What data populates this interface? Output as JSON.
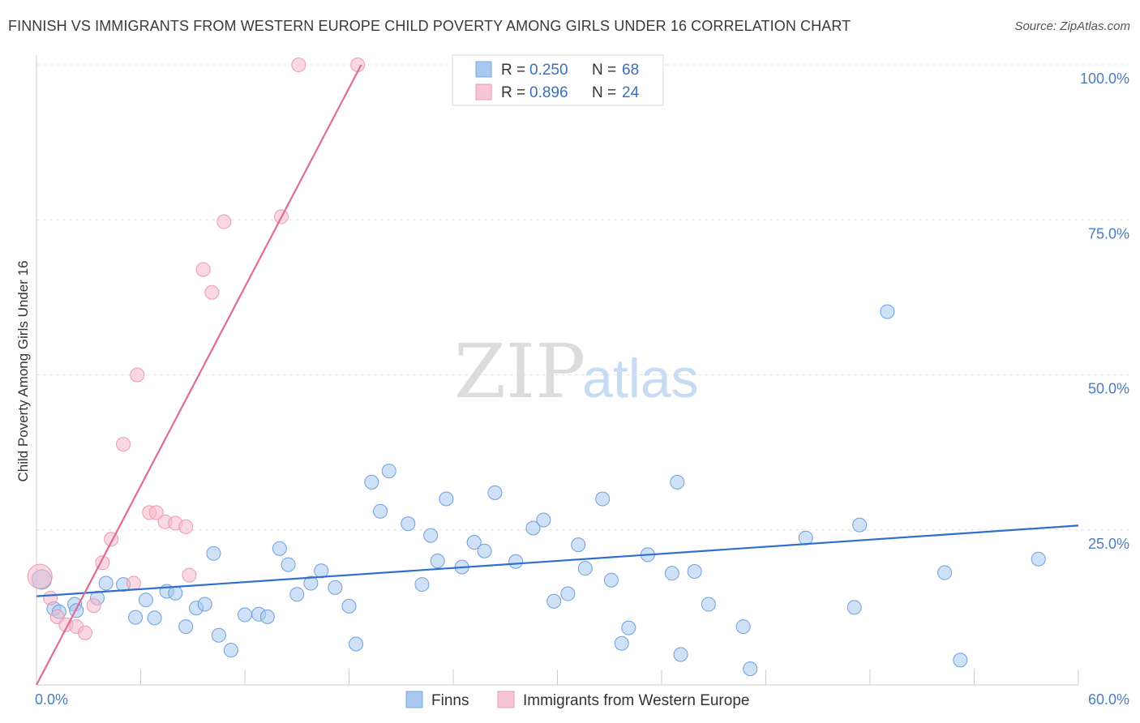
{
  "header": {
    "title": "FINNISH VS IMMIGRANTS FROM WESTERN EUROPE CHILD POVERTY AMONG GIRLS UNDER 16 CORRELATION CHART",
    "source": "Source: ZipAtlas.com"
  },
  "watermark": {
    "zip": "ZIP",
    "atlas": "atlas"
  },
  "legend": {
    "r_label": "R =",
    "n_label": "N =",
    "finns": {
      "r": "0.250",
      "n": "68"
    },
    "immigrants": {
      "r": "0.896",
      "n": "24"
    }
  },
  "chart_data": {
    "type": "scatter",
    "title": "FINNISH VS IMMIGRANTS FROM WESTERN EUROPE CHILD POVERTY AMONG GIRLS UNDER 16 CORRELATION CHART",
    "xlabel": "",
    "ylabel": "Child Poverty Among Girls Under 16",
    "xlim": [
      0,
      60
    ],
    "ylim": [
      0,
      100
    ],
    "x_tick_labels": [
      "0.0%",
      "60.0%"
    ],
    "y_tick_labels": [
      "25.0%",
      "50.0%",
      "75.0%",
      "100.0%"
    ],
    "y_ticks": [
      25,
      50,
      75,
      100
    ],
    "grid": true,
    "legend_position": "top-center",
    "colors": {
      "finns": "#a8c8f0",
      "finns_line": "#2f6fce",
      "immigrants": "#f6b8ca",
      "immigrants_line": "#e06b95"
    },
    "series": [
      {
        "name": "Finns",
        "trend": [
          [
            0,
            14.3
          ],
          [
            60,
            25.7
          ]
        ],
        "points": [
          [
            0.3,
            17.0
          ],
          [
            1.0,
            12.3
          ],
          [
            1.3,
            11.8
          ],
          [
            2.2,
            13.0
          ],
          [
            2.3,
            12.0
          ],
          [
            4.0,
            16.4
          ],
          [
            3.5,
            14.0
          ],
          [
            5.0,
            16.2
          ],
          [
            5.7,
            10.9
          ],
          [
            6.3,
            13.7
          ],
          [
            6.8,
            10.8
          ],
          [
            7.5,
            15.1
          ],
          [
            8.0,
            14.8
          ],
          [
            8.6,
            9.4
          ],
          [
            9.2,
            12.4
          ],
          [
            9.7,
            13.0
          ],
          [
            10.2,
            21.2
          ],
          [
            10.5,
            8.0
          ],
          [
            11.2,
            5.6
          ],
          [
            12.0,
            11.3
          ],
          [
            12.8,
            11.4
          ],
          [
            13.3,
            11.0
          ],
          [
            14.0,
            22.0
          ],
          [
            14.5,
            19.4
          ],
          [
            15.0,
            14.6
          ],
          [
            15.8,
            16.4
          ],
          [
            16.4,
            18.4
          ],
          [
            17.2,
            15.7
          ],
          [
            18.0,
            12.7
          ],
          [
            18.4,
            6.6
          ],
          [
            19.3,
            32.7
          ],
          [
            19.8,
            28.0
          ],
          [
            20.3,
            34.5
          ],
          [
            21.4,
            26.0
          ],
          [
            22.2,
            16.2
          ],
          [
            22.7,
            24.1
          ],
          [
            23.1,
            20.0
          ],
          [
            23.6,
            30.0
          ],
          [
            24.5,
            19.0
          ],
          [
            25.2,
            23.0
          ],
          [
            25.8,
            21.6
          ],
          [
            26.4,
            31.0
          ],
          [
            27.6,
            19.9
          ],
          [
            28.6,
            25.3
          ],
          [
            29.2,
            26.6
          ],
          [
            29.8,
            13.5
          ],
          [
            30.6,
            14.7
          ],
          [
            31.2,
            22.6
          ],
          [
            31.6,
            18.8
          ],
          [
            32.6,
            30.0
          ],
          [
            33.1,
            16.9
          ],
          [
            33.7,
            6.7
          ],
          [
            34.1,
            9.2
          ],
          [
            35.2,
            21.0
          ],
          [
            36.6,
            18.0
          ],
          [
            36.9,
            32.7
          ],
          [
            37.1,
            4.9
          ],
          [
            37.9,
            18.3
          ],
          [
            38.7,
            13.0
          ],
          [
            40.7,
            9.4
          ],
          [
            41.1,
            2.6
          ],
          [
            44.3,
            23.7
          ],
          [
            47.1,
            12.5
          ],
          [
            47.4,
            25.8
          ],
          [
            49.0,
            60.2
          ],
          [
            52.3,
            18.1
          ],
          [
            53.2,
            4.0
          ],
          [
            57.7,
            20.3
          ]
        ]
      },
      {
        "name": "Immigrants from Western Europe",
        "trend": [
          [
            0,
            0
          ],
          [
            18.7,
            100
          ]
        ],
        "points": [
          [
            0.2,
            17.5
          ],
          [
            0.8,
            14.0
          ],
          [
            1.2,
            11.0
          ],
          [
            1.7,
            9.7
          ],
          [
            2.3,
            9.4
          ],
          [
            2.8,
            8.4
          ],
          [
            3.3,
            12.8
          ],
          [
            3.8,
            19.7
          ],
          [
            4.3,
            23.5
          ],
          [
            5.0,
            38.8
          ],
          [
            5.6,
            16.4
          ],
          [
            5.8,
            50.0
          ],
          [
            6.5,
            27.8
          ],
          [
            6.9,
            27.8
          ],
          [
            7.4,
            26.3
          ],
          [
            8.0,
            26.1
          ],
          [
            8.6,
            25.5
          ],
          [
            8.8,
            17.7
          ],
          [
            9.6,
            67.0
          ],
          [
            10.1,
            63.3
          ],
          [
            10.8,
            74.7
          ],
          [
            14.1,
            75.5
          ],
          [
            15.1,
            100.0
          ],
          [
            18.5,
            100.0
          ]
        ]
      }
    ]
  },
  "bottom_legend": {
    "finns": "Finns",
    "immigrants": "Immigrants from Western Europe"
  }
}
